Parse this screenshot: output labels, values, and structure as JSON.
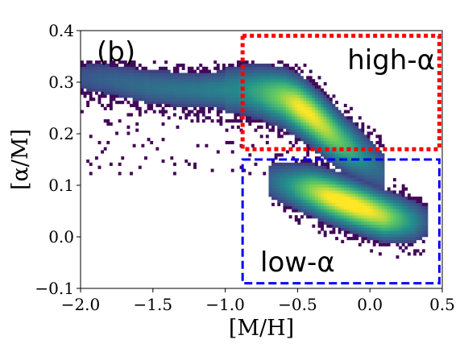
{
  "chart_data": {
    "type": "heatmap",
    "panel_label": "(b)",
    "xlabel": "[M/H]",
    "ylabel": "[α/M]",
    "xlim": [
      -2.0,
      0.5
    ],
    "ylim": [
      -0.1,
      0.4
    ],
    "xticks": [
      -2.0,
      -1.5,
      -1.0,
      -0.5,
      0.0,
      0.5
    ],
    "xtick_labels": [
      "−2.0",
      "−1.5",
      "−1.0",
      "−0.5",
      "0.0",
      "0.5"
    ],
    "yticks": [
      -0.1,
      0.0,
      0.1,
      0.2,
      0.3,
      0.4
    ],
    "ytick_labels": [
      "−0.1",
      "0.0",
      "0.1",
      "0.2",
      "0.3",
      "0.4"
    ],
    "grid": false,
    "colormap": [
      "#440154",
      "#3b528b",
      "#21918c",
      "#5ec962",
      "#fde725"
    ],
    "density_ridges": [
      {
        "name": "high-alpha sequence",
        "points": [
          [
            -2.0,
            0.31,
            0.25
          ],
          [
            -1.8,
            0.305,
            0.3
          ],
          [
            -1.5,
            0.29,
            0.35
          ],
          [
            -1.2,
            0.285,
            0.38
          ],
          [
            -0.9,
            0.285,
            0.45
          ],
          [
            -0.75,
            0.28,
            0.6
          ],
          [
            -0.6,
            0.27,
            0.8
          ],
          [
            -0.5,
            0.255,
            0.95
          ],
          [
            -0.4,
            0.235,
            0.95
          ],
          [
            -0.3,
            0.21,
            0.85
          ],
          [
            -0.2,
            0.185,
            0.7
          ],
          [
            -0.1,
            0.165,
            0.55
          ],
          [
            0.0,
            0.145,
            0.4
          ],
          [
            0.1,
            0.125,
            0.3
          ]
        ],
        "width": 0.035
      },
      {
        "name": "low-alpha sequence",
        "points": [
          [
            -0.7,
            0.11,
            0.3
          ],
          [
            -0.55,
            0.1,
            0.5
          ],
          [
            -0.4,
            0.09,
            0.8
          ],
          [
            -0.3,
            0.08,
            0.95
          ],
          [
            -0.2,
            0.07,
            1.0
          ],
          [
            -0.1,
            0.06,
            1.0
          ],
          [
            0.0,
            0.05,
            0.95
          ],
          [
            0.1,
            0.04,
            0.85
          ],
          [
            0.2,
            0.035,
            0.65
          ],
          [
            0.3,
            0.03,
            0.45
          ],
          [
            0.4,
            0.03,
            0.25
          ]
        ],
        "width": 0.03
      }
    ],
    "regions": [
      {
        "label": "high-α",
        "x": [
          -0.88,
          0.48
        ],
        "y": [
          0.17,
          0.39
        ],
        "color": "#ff0000",
        "style": "dotted"
      },
      {
        "label": "low-α",
        "x": [
          -0.88,
          0.48
        ],
        "y": [
          -0.09,
          0.15
        ],
        "color": "#0000ff",
        "style": "dashed"
      }
    ]
  }
}
